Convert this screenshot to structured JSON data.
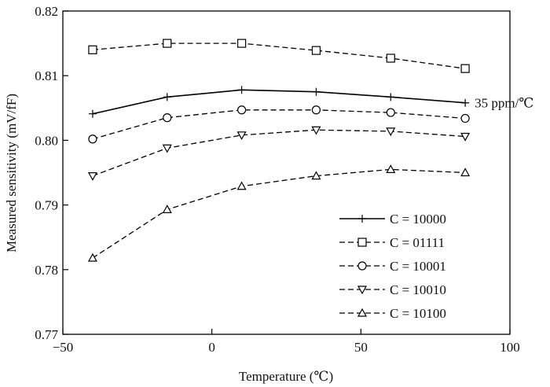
{
  "chart_data": {
    "type": "line",
    "title": "",
    "xlabel": "Temperature (℃)",
    "ylabel": "Measured sensitivity (mV/fF)",
    "xlim": [
      -50,
      100
    ],
    "ylim": [
      0.77,
      0.82
    ],
    "xticks": [
      -50,
      0,
      50,
      100
    ],
    "xtick_labels": [
      "−50",
      "0",
      "50",
      "100"
    ],
    "yticks": [
      0.77,
      0.78,
      0.79,
      0.8,
      0.81,
      0.82
    ],
    "ytick_labels": [
      "0.77",
      "0.78",
      "0.79",
      "0.80",
      "0.81",
      "0.82"
    ],
    "grid": false,
    "legend_position": "bottom-right",
    "x": [
      -40,
      -15,
      10,
      35,
      60,
      85
    ],
    "series": [
      {
        "name": "C = 10000",
        "marker": "plus",
        "dash": "solid",
        "values": [
          0.8041,
          0.8067,
          0.8078,
          0.8075,
          0.8067,
          0.8058
        ]
      },
      {
        "name": "C = 01111",
        "marker": "square",
        "dash": "dashed",
        "values": [
          0.814,
          0.815,
          0.815,
          0.8139,
          0.8127,
          0.8111
        ]
      },
      {
        "name": "C = 10001",
        "marker": "circle",
        "dash": "dashed",
        "values": [
          0.8002,
          0.8035,
          0.8047,
          0.8047,
          0.8043,
          0.8034
        ]
      },
      {
        "name": "C = 10010",
        "marker": "triangle-down",
        "dash": "dashed",
        "values": [
          0.7945,
          0.7988,
          0.8008,
          0.8016,
          0.8014,
          0.8006
        ]
      },
      {
        "name": "C = 10100",
        "marker": "triangle-up",
        "dash": "dashed",
        "values": [
          0.7818,
          0.7893,
          0.7929,
          0.7945,
          0.7955,
          0.795
        ]
      }
    ],
    "annotations": [
      {
        "text": "35 ppm/℃",
        "series": "C = 10000"
      }
    ]
  }
}
